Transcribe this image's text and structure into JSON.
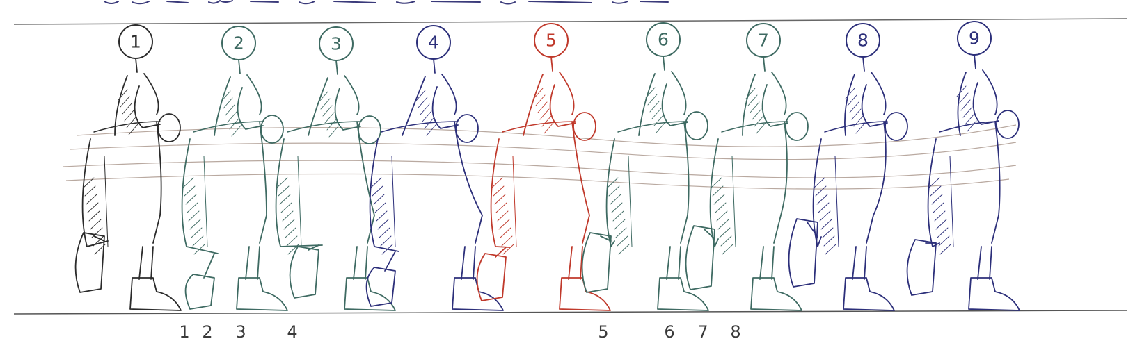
{
  "frames": [
    {
      "number": "1",
      "color": "#2b2b2b"
    },
    {
      "number": "2",
      "color": "#3e6a62"
    },
    {
      "number": "3",
      "color": "#3e6a62"
    },
    {
      "number": "4",
      "color": "#2c2f7a"
    },
    {
      "number": "5",
      "color": "#c0392b"
    },
    {
      "number": "6",
      "color": "#3e6a62"
    },
    {
      "number": "7",
      "color": "#3e6a62"
    },
    {
      "number": "8",
      "color": "#2c2f7a"
    },
    {
      "number": "9",
      "color": "#2c2f7a"
    }
  ],
  "spacing_marks": [
    "1",
    "2",
    "3",
    "4",
    "5",
    "6",
    "7",
    "8"
  ],
  "colors": {
    "paper": "#ffffff",
    "line": "#555555",
    "guide": "#b9a9a0"
  }
}
